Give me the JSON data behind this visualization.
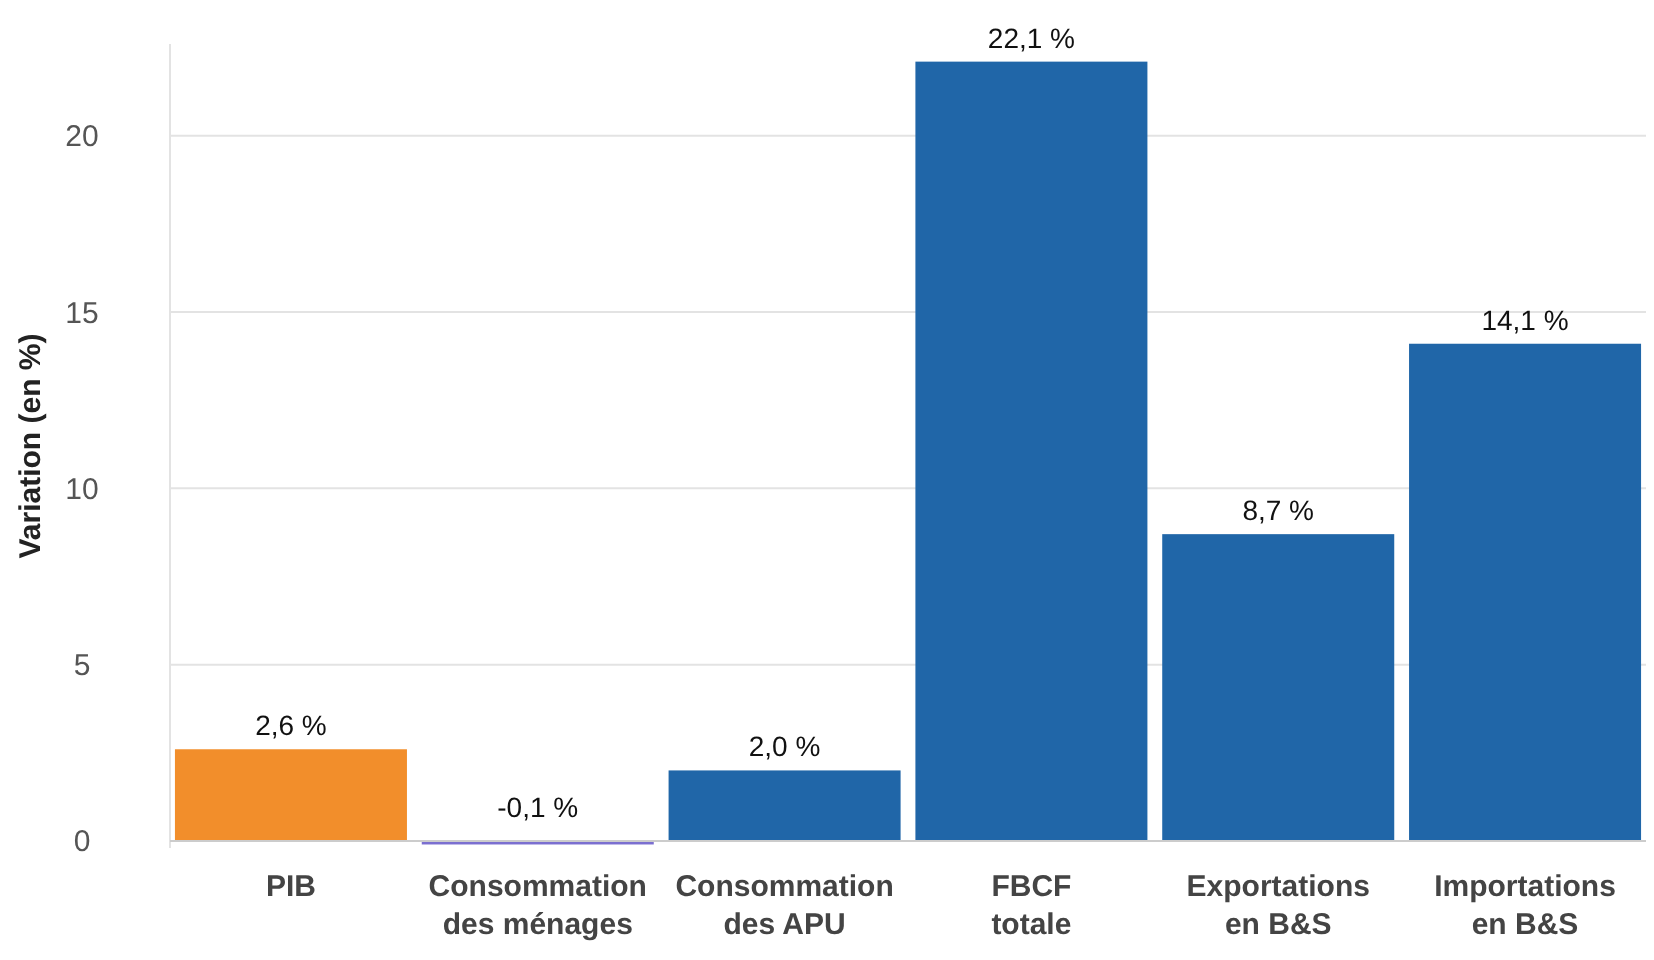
{
  "chart_data": {
    "type": "bar",
    "ylabel": "Variation (en %)",
    "categories": [
      "PIB",
      "Consommation des ménages",
      "Consommation des APU",
      "FBCF totale",
      "Exportations en B&S",
      "Importations en B&S"
    ],
    "values": [
      2.6,
      -0.1,
      2.0,
      22.1,
      8.7,
      14.1
    ],
    "colors": [
      "#f28e2b",
      "#7b6fd0",
      "#2066a8",
      "#2066a8",
      "#2066a8",
      "#2066a8"
    ],
    "value_labels": [
      "2,6 %",
      "-0,1 %",
      "2,0 %",
      "22,1 %",
      "8,7 %",
      "14,1 %"
    ],
    "ylim": [
      -0.2,
      22.6
    ],
    "yticks": [
      0,
      5,
      10,
      15,
      20
    ],
    "grid": "y"
  }
}
